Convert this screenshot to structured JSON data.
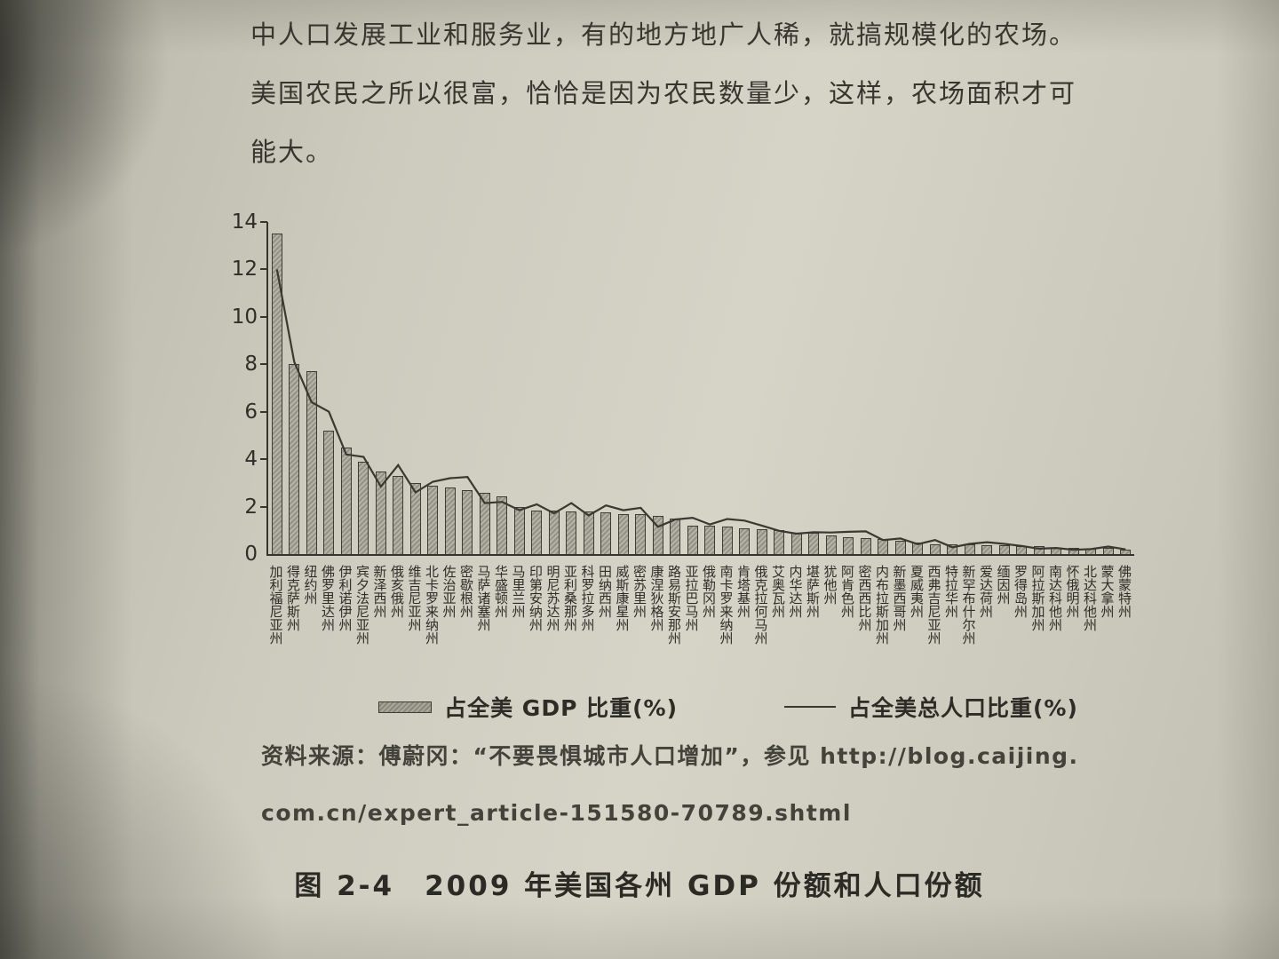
{
  "page": {
    "paragraph_lines": [
      "中人口发展工业和服务业，有的地方地广人稀，就搞规模化的农场。",
      "美国农民之所以很富，恰恰是因为农民数量少，这样，农场面积才可",
      "能大。"
    ],
    "source_lines": [
      "资料来源：傅蔚冈：“不要畏惧城市人口增加”，参见 http://blog.caijing.",
      "com.cn/expert_article-151580-70789.shtml"
    ],
    "caption": "图 2-4　2009 年美国各州 GDP 份额和人口份额"
  },
  "chart_data": {
    "type": "bar",
    "title": "2009 年美国各州 GDP 份额和人口份额",
    "xlabel": "",
    "ylabel": "",
    "ylim": [
      0,
      14
    ],
    "yticks": [
      0,
      2,
      4,
      6,
      8,
      10,
      12,
      14
    ],
    "grid": false,
    "legend_position": "bottom",
    "legend": [
      {
        "label": "占全美 GDP 比重(%)",
        "type": "bar",
        "color": "#9a988c"
      },
      {
        "label": "占全美总人口比重(%)",
        "type": "line",
        "color": "#3a3931"
      }
    ],
    "categories": [
      "加利福尼亚州",
      "得克萨斯州",
      "纽约州",
      "佛罗里达州",
      "伊利诺伊州",
      "宾夕法尼亚州",
      "新泽西州",
      "俄亥俄州",
      "维吉尼亚州",
      "北卡罗来纳州",
      "佐治亚州",
      "密歇根州",
      "马萨诸塞州",
      "华盛顿州",
      "马里兰州",
      "印第安纳州",
      "明尼苏达州",
      "亚利桑那州",
      "科罗拉多州",
      "田纳西州",
      "威斯康星州",
      "密苏里州",
      "康涅狄格州",
      "路易斯安那州",
      "亚拉巴马州",
      "俄勒冈州",
      "南卡罗来纳州",
      "肯塔基州",
      "俄克拉何马州",
      "艾奥瓦州",
      "内华达州",
      "堪萨斯州",
      "犹他州",
      "阿肯色州",
      "密西西比州",
      "内布拉斯加州",
      "新墨西哥州",
      "夏威夷州",
      "西弗吉尼亚州",
      "特拉华州",
      "新罕布什尔州",
      "爱达荷州",
      "缅因州",
      "罗得岛州",
      "阿拉斯加州",
      "南达科他州",
      "怀俄明州",
      "北达科他州",
      "蒙大拿州",
      "佛蒙特州"
    ],
    "series": [
      {
        "name": "占全美 GDP 比重(%)",
        "type": "bar",
        "values": [
          13.5,
          8.0,
          7.7,
          5.2,
          4.5,
          3.9,
          3.5,
          3.3,
          3.0,
          2.9,
          2.8,
          2.7,
          2.6,
          2.45,
          2.0,
          1.85,
          1.85,
          1.8,
          1.8,
          1.75,
          1.7,
          1.7,
          1.6,
          1.5,
          1.2,
          1.2,
          1.15,
          1.1,
          1.05,
          1.0,
          0.9,
          0.9,
          0.8,
          0.7,
          0.68,
          0.62,
          0.55,
          0.47,
          0.43,
          0.42,
          0.42,
          0.38,
          0.36,
          0.33,
          0.32,
          0.27,
          0.26,
          0.24,
          0.25,
          0.18
        ]
      },
      {
        "name": "占全美总人口比重(%)",
        "type": "line",
        "values": [
          12.0,
          8.1,
          6.4,
          6.0,
          4.2,
          4.1,
          2.85,
          3.75,
          2.6,
          3.05,
          3.2,
          3.25,
          2.15,
          2.2,
          1.85,
          2.1,
          1.72,
          2.15,
          1.63,
          2.05,
          1.85,
          1.95,
          1.15,
          1.46,
          1.53,
          1.25,
          1.48,
          1.41,
          1.2,
          0.98,
          0.86,
          0.92,
          0.91,
          0.94,
          0.96,
          0.59,
          0.66,
          0.42,
          0.59,
          0.29,
          0.43,
          0.5,
          0.43,
          0.34,
          0.23,
          0.26,
          0.18,
          0.21,
          0.32,
          0.2
        ]
      }
    ]
  }
}
